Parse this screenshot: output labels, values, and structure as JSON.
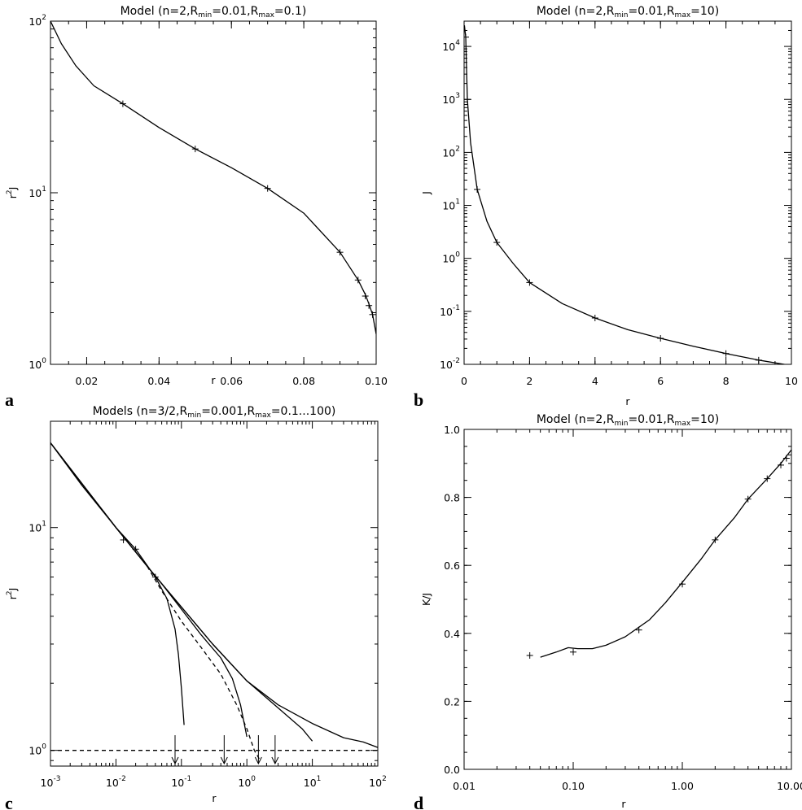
{
  "chart_data": [
    {
      "id": "a",
      "panel_letter": "a",
      "type": "line",
      "title": {
        "pre": "Model (n=2,R",
        "s1": "min",
        "mid": "=0.01,R",
        "s2": "max",
        "post": "=0.1)"
      },
      "xlabel": "r",
      "ylabel": {
        "base": "r",
        "sup": "2",
        "post": "J"
      },
      "xscale": "linear",
      "yscale": "log",
      "xlim": [
        0.01,
        0.1
      ],
      "ylim": [
        1,
        100
      ],
      "xticks": [
        {
          "v": 0.02,
          "label": "0.02"
        },
        {
          "v": 0.04,
          "label": "0.04"
        },
        {
          "v": 0.06,
          "label": "0.06"
        },
        {
          "v": 0.08,
          "label": "0.08"
        },
        {
          "v": 0.1,
          "label": "0.10"
        }
      ],
      "yticks": [
        {
          "v": 1,
          "base": "10",
          "sup": "0"
        },
        {
          "v": 10,
          "base": "10",
          "sup": "1"
        },
        {
          "v": 100,
          "base": "10",
          "sup": "2"
        }
      ],
      "series": [
        {
          "style": "solid",
          "x": [
            0.01,
            0.013,
            0.017,
            0.022,
            0.03,
            0.04,
            0.05,
            0.06,
            0.07,
            0.08,
            0.09,
            0.095,
            0.097,
            0.098,
            0.099,
            0.1
          ],
          "y": [
            100,
            74,
            55,
            42,
            33,
            24,
            18,
            14,
            10.6,
            7.6,
            4.5,
            3.1,
            2.55,
            2.25,
            1.95,
            1.5
          ]
        },
        {
          "style": "cross",
          "x": [
            0.03,
            0.05,
            0.07,
            0.09,
            0.095,
            0.097,
            0.098,
            0.099
          ],
          "y": [
            33,
            18,
            10.6,
            4.5,
            3.1,
            2.5,
            2.2,
            1.95
          ]
        }
      ]
    },
    {
      "id": "b",
      "panel_letter": "b",
      "type": "line",
      "title": {
        "pre": "Model (n=2,R",
        "s1": "min",
        "mid": "=0.01,R",
        "s2": "max",
        "post": "=10)"
      },
      "xlabel": "r",
      "ylabel": {
        "base": "J",
        "sup": "",
        "post": ""
      },
      "xscale": "linear",
      "yscale": "log",
      "xlim": [
        0,
        10
      ],
      "ylim": [
        0.01,
        30000
      ],
      "xticks": [
        {
          "v": 0,
          "label": "0"
        },
        {
          "v": 2,
          "label": "2"
        },
        {
          "v": 4,
          "label": "4"
        },
        {
          "v": 6,
          "label": "6"
        },
        {
          "v": 8,
          "label": "8"
        },
        {
          "v": 10,
          "label": "10"
        }
      ],
      "yticks": [
        {
          "v": 0.01,
          "base": "10",
          "sup": "-2"
        },
        {
          "v": 0.1,
          "base": "10",
          "sup": "-1"
        },
        {
          "v": 1,
          "base": "10",
          "sup": "0"
        },
        {
          "v": 10,
          "base": "10",
          "sup": "1"
        },
        {
          "v": 100,
          "base": "10",
          "sup": "2"
        },
        {
          "v": 1000,
          "base": "10",
          "sup": "3"
        },
        {
          "v": 10000,
          "base": "10",
          "sup": "4"
        }
      ],
      "series": [
        {
          "style": "solid",
          "x": [
            0.01,
            0.05,
            0.1,
            0.2,
            0.4,
            0.7,
            1,
            1.5,
            2,
            3,
            4,
            5,
            6,
            7,
            8,
            9,
            10
          ],
          "y": [
            25000,
            15000,
            1000,
            150,
            20,
            5,
            2,
            0.8,
            0.35,
            0.14,
            0.075,
            0.045,
            0.031,
            0.022,
            0.016,
            0.012,
            0.0095
          ]
        },
        {
          "style": "cross",
          "x": [
            0.05,
            0.1,
            0.4,
            1,
            2,
            4,
            6,
            8,
            9
          ],
          "y": [
            15000,
            1000,
            20,
            2,
            0.35,
            0.075,
            0.031,
            0.016,
            0.012
          ]
        }
      ]
    },
    {
      "id": "c",
      "panel_letter": "c",
      "type": "line",
      "title": {
        "pre": "Models (n=3/2,R",
        "s1": "min",
        "mid": "=0.001,R",
        "s2": "max",
        "post": "=0.1...100)"
      },
      "xlabel": "r",
      "ylabel": {
        "base": "r",
        "sup": "2",
        "post": "J"
      },
      "xscale": "log",
      "yscale": "log",
      "xlim": [
        0.001,
        100
      ],
      "ylim": [
        0.85,
        30
      ],
      "xticks": [
        {
          "v": 0.001,
          "base": "10",
          "sup": "-3"
        },
        {
          "v": 0.01,
          "base": "10",
          "sup": "-2"
        },
        {
          "v": 0.1,
          "base": "10",
          "sup": "-1"
        },
        {
          "v": 1,
          "base": "10",
          "sup": "0"
        },
        {
          "v": 10,
          "base": "10",
          "sup": "1"
        },
        {
          "v": 100,
          "base": "10",
          "sup": "2"
        }
      ],
      "yticks": [
        {
          "v": 1,
          "base": "10",
          "sup": "0"
        },
        {
          "v": 10,
          "base": "10",
          "sup": "1"
        }
      ],
      "series": [
        {
          "style": "solid",
          "x": [
            0.001,
            0.003,
            0.01,
            0.02,
            0.04,
            0.06,
            0.08,
            0.09,
            0.1,
            0.11
          ],
          "y": [
            24,
            15.5,
            10,
            8,
            6,
            4.8,
            3.5,
            2.7,
            1.9,
            1.3
          ]
        },
        {
          "style": "solid",
          "x": [
            0.001,
            0.01,
            0.03,
            0.05,
            0.1,
            0.2,
            0.4,
            0.6,
            0.8,
            1.0
          ],
          "y": [
            24,
            10,
            6.7,
            5.6,
            4.3,
            3.3,
            2.6,
            2.1,
            1.6,
            1.15
          ]
        },
        {
          "style": "solid",
          "x": [
            0.001,
            0.01,
            0.03,
            0.05,
            0.1,
            0.3,
            1,
            3,
            7,
            10
          ],
          "y": [
            24,
            10,
            6.7,
            5.6,
            4.4,
            3.0,
            2.05,
            1.55,
            1.25,
            1.1
          ]
        },
        {
          "style": "solid",
          "x": [
            0.001,
            0.01,
            0.03,
            0.05,
            0.1,
            0.3,
            1,
            3,
            10,
            30,
            60,
            100
          ],
          "y": [
            24,
            10,
            6.7,
            5.6,
            4.4,
            3.0,
            2.05,
            1.6,
            1.32,
            1.14,
            1.09,
            1.03
          ]
        },
        {
          "style": "dashed",
          "x": [
            0.03,
            0.05,
            0.1,
            0.2,
            0.4,
            0.7,
            1.0,
            1.3,
            1.6
          ],
          "y": [
            6.7,
            5.2,
            3.8,
            2.9,
            2.2,
            1.6,
            1.25,
            1.0,
            0.9
          ]
        },
        {
          "style": "dashed",
          "x": [
            0.001,
            100
          ],
          "y": [
            1,
            1
          ]
        },
        {
          "style": "cross",
          "x": [
            0.013,
            0.02,
            0.04
          ],
          "y": [
            8.8,
            8.0,
            6.0
          ]
        }
      ],
      "arrows_x": [
        0.08,
        0.45,
        1.5,
        2.7
      ]
    },
    {
      "id": "d",
      "panel_letter": "d",
      "type": "line",
      "title": {
        "pre": "Model (n=2,R",
        "s1": "min",
        "mid": "=0.01,R",
        "s2": "max",
        "post": "=10)"
      },
      "xlabel": "r",
      "ylabel": {
        "base": "K/J",
        "sup": "",
        "post": ""
      },
      "xscale": "log",
      "yscale": "linear",
      "xlim": [
        0.01,
        10
      ],
      "ylim": [
        0,
        1
      ],
      "xticks": [
        {
          "v": 0.01,
          "label": "0.01"
        },
        {
          "v": 0.1,
          "label": "0.10"
        },
        {
          "v": 1,
          "label": "1.00"
        },
        {
          "v": 10,
          "label": "10.00"
        }
      ],
      "yticks": [
        {
          "v": 0,
          "label": "0.0"
        },
        {
          "v": 0.2,
          "label": "0.2"
        },
        {
          "v": 0.4,
          "label": "0.4"
        },
        {
          "v": 0.6,
          "label": "0.6"
        },
        {
          "v": 0.8,
          "label": "0.8"
        },
        {
          "v": 1.0,
          "label": "1.0"
        }
      ],
      "series": [
        {
          "style": "solid",
          "x": [
            0.05,
            0.07,
            0.09,
            0.11,
            0.15,
            0.2,
            0.3,
            0.5,
            0.7,
            1,
            1.5,
            2,
            3,
            4,
            6,
            8,
            10
          ],
          "y": [
            0.33,
            0.345,
            0.358,
            0.355,
            0.355,
            0.365,
            0.39,
            0.44,
            0.49,
            0.55,
            0.62,
            0.675,
            0.74,
            0.795,
            0.855,
            0.9,
            0.94
          ]
        },
        {
          "style": "cross",
          "x": [
            0.04,
            0.1,
            0.4,
            1,
            2,
            4,
            6,
            8,
            9,
            10
          ],
          "y": [
            0.335,
            0.345,
            0.41,
            0.545,
            0.675,
            0.795,
            0.855,
            0.895,
            0.915,
            0.925
          ]
        }
      ]
    }
  ]
}
